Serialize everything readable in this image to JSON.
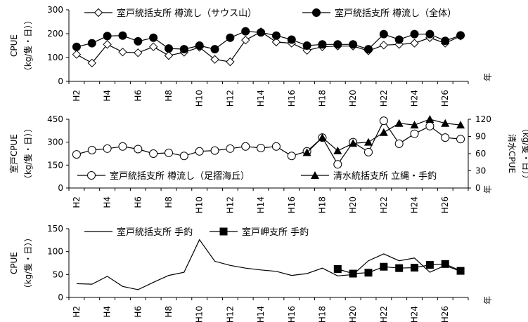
{
  "chart_data": [
    {
      "type": "line",
      "x": [
        "H2",
        "H3",
        "H4",
        "H5",
        "H6",
        "H7",
        "H8",
        "H9",
        "H10",
        "H11",
        "H12",
        "H13",
        "H14",
        "H15",
        "H16",
        "H17",
        "H18",
        "H19",
        "H20",
        "H21",
        "H22",
        "H23",
        "H24",
        "H25",
        "H26",
        "H27"
      ],
      "xticks": [
        "H2",
        "H4",
        "H6",
        "H8",
        "H10",
        "H12",
        "H14",
        "H16",
        "H18",
        "H20",
        "H22",
        "H24",
        "H26"
      ],
      "xunit": "年",
      "ylabel": "CPUE",
      "ylabel_unit": "（kg/隻・日））",
      "ylim": [
        0,
        300
      ],
      "yticks": [
        0,
        100,
        200,
        300
      ],
      "legend_position": "top",
      "series": [
        {
          "name": "室戸統括支所  樽流し（サウス山）",
          "marker": "diamond-open",
          "values": [
            113,
            77,
            155,
            123,
            120,
            145,
            108,
            122,
            143,
            92,
            82,
            173,
            208,
            165,
            160,
            130,
            145,
            148,
            148,
            128,
            152,
            155,
            160,
            183,
            160,
            190
          ]
        },
        {
          "name": "室戸統括支所  樽流し（全体）",
          "marker": "circle-filled",
          "values": [
            145,
            160,
            190,
            192,
            168,
            183,
            138,
            135,
            150,
            135,
            183,
            210,
            205,
            192,
            175,
            150,
            155,
            155,
            155,
            135,
            198,
            175,
            198,
            198,
            170,
            193
          ]
        }
      ]
    },
    {
      "type": "line",
      "x": [
        "H2",
        "H3",
        "H4",
        "H5",
        "H6",
        "H7",
        "H8",
        "H9",
        "H10",
        "H11",
        "H12",
        "H13",
        "H14",
        "H15",
        "H16",
        "H17",
        "H18",
        "H19",
        "H20",
        "H21",
        "H22",
        "H23",
        "H24",
        "H25",
        "H26",
        "H27"
      ],
      "xticks": [
        "H2",
        "H4",
        "H6",
        "H8",
        "H10",
        "H12",
        "H14",
        "H16",
        "H18",
        "H20",
        "H22",
        "H24",
        "H26"
      ],
      "xunit": "年",
      "ylabel": "室戸CPUE",
      "ylabel_unit": "（kg/隻・日））",
      "ylim": [
        0,
        450
      ],
      "yticks": [
        0,
        150,
        300,
        450
      ],
      "y2label": "清水CPUE",
      "y2label_unit": "（kg/隻・日））",
      "y2lim": [
        0,
        120
      ],
      "y2ticks": [
        0,
        30,
        60,
        90,
        120
      ],
      "legend_position": "bottom",
      "series": [
        {
          "name": "室戸統括支所  樽流し（足摺海丘）",
          "marker": "circle-open",
          "axis": "left",
          "values": [
            220,
            248,
            258,
            272,
            255,
            225,
            230,
            210,
            240,
            245,
            258,
            272,
            262,
            272,
            210,
            240,
            330,
            155,
            300,
            235,
            440,
            290,
            355,
            405,
            330,
            320
          ]
        },
        {
          "name": "清水統括支所  立縄・手釣",
          "marker": "triangle-filled",
          "axis": "right",
          "values": [
            null,
            null,
            null,
            null,
            null,
            null,
            null,
            null,
            null,
            null,
            null,
            null,
            null,
            null,
            null,
            62,
            88,
            65,
            78,
            80,
            97,
            113,
            110,
            120,
            113,
            110
          ]
        }
      ]
    },
    {
      "type": "line",
      "x": [
        "H2",
        "H3",
        "H4",
        "H5",
        "H6",
        "H7",
        "H8",
        "H9",
        "H10",
        "H11",
        "H12",
        "H13",
        "H14",
        "H15",
        "H16",
        "H17",
        "H18",
        "H19",
        "H20",
        "H21",
        "H22",
        "H23",
        "H24",
        "H25",
        "H26",
        "H27"
      ],
      "xticks": [
        "H2",
        "H4",
        "H6",
        "H8",
        "H10",
        "H12",
        "H14",
        "H16",
        "H18",
        "H20",
        "H22",
        "H24",
        "H26"
      ],
      "xunit": "年",
      "ylabel": "CPUE",
      "ylabel_unit": "（kg/隻・日））",
      "ylim": [
        0,
        150
      ],
      "yticks": [
        0,
        50,
        100,
        150
      ],
      "legend_position": "top",
      "series": [
        {
          "name": "室戸統括支所  手釣",
          "marker": "none",
          "values": [
            30,
            29,
            46,
            24,
            17,
            33,
            48,
            55,
            126,
            79,
            70,
            64,
            60,
            57,
            48,
            52,
            64,
            47,
            50,
            80,
            95,
            80,
            86,
            55,
            70,
            57
          ]
        },
        {
          "name": "室戸岬支所  手釣",
          "marker": "square-filled",
          "values": [
            null,
            null,
            null,
            null,
            null,
            null,
            null,
            null,
            null,
            null,
            null,
            null,
            null,
            null,
            null,
            null,
            null,
            62,
            52,
            54,
            67,
            64,
            65,
            71,
            73,
            58
          ]
        }
      ]
    }
  ]
}
